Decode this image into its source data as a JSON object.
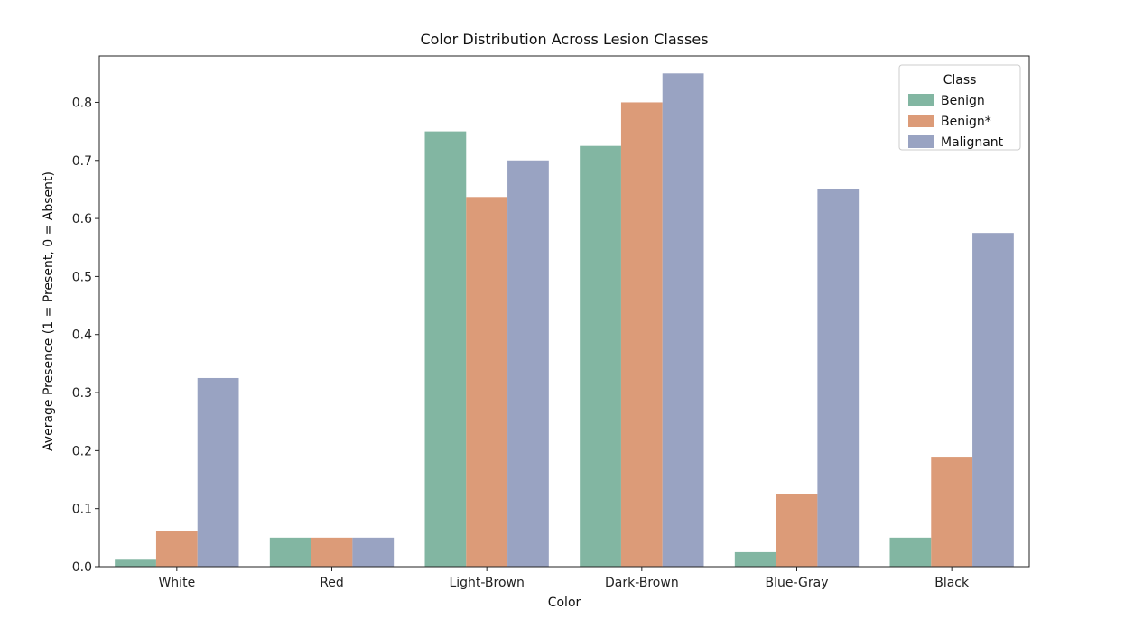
{
  "chart_data": {
    "type": "bar",
    "title": "Color Distribution Across Lesion Classes",
    "xlabel": "Color",
    "ylabel": "Average Presence (1 = Present, 0 = Absent)",
    "categories": [
      "White",
      "Red",
      "Light-Brown",
      "Dark-Brown",
      "Blue-Gray",
      "Black"
    ],
    "series": [
      {
        "name": "Benign",
        "color": "#82b6a2",
        "values": [
          0.012,
          0.05,
          0.75,
          0.725,
          0.025,
          0.05
        ]
      },
      {
        "name": "Benign*",
        "color": "#dc9b78",
        "values": [
          0.062,
          0.05,
          0.637,
          0.8,
          0.125,
          0.188
        ]
      },
      {
        "name": "Malignant",
        "color": "#99a3c2",
        "values": [
          0.325,
          0.05,
          0.7,
          0.85,
          0.65,
          0.575
        ]
      }
    ],
    "ylim": [
      0,
      0.88
    ],
    "yticks": [
      "0.0",
      "0.1",
      "0.2",
      "0.3",
      "0.4",
      "0.5",
      "0.6",
      "0.7",
      "0.8"
    ],
    "legend": {
      "title": "Class",
      "placement": "top-right"
    },
    "grid": false
  }
}
